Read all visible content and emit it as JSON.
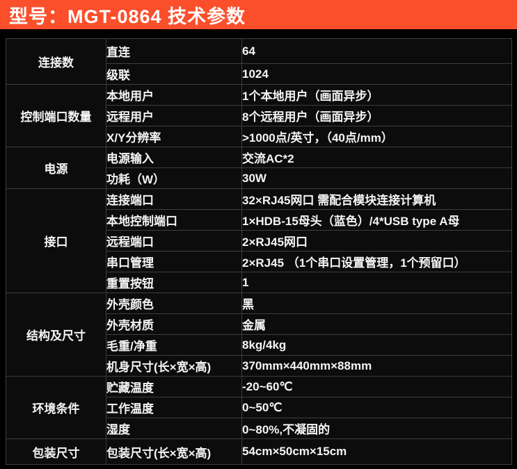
{
  "header": {
    "title": "型号：MGT-0864  技术参数"
  },
  "colors": {
    "accent": "#fb4f2c",
    "background": "#000000",
    "cell_background": "#0c0c0c",
    "border": "#3e3e3e",
    "text": "#f5f5f5"
  },
  "table": {
    "groups": [
      {
        "category": "连接数",
        "rows": [
          {
            "param": "直连",
            "value": "64"
          },
          {
            "param": "级联",
            "value": "1024"
          }
        ]
      },
      {
        "category": "控制端口数量",
        "rows": [
          {
            "param": "本地用户",
            "value": "1个本地用户（画面异步）"
          },
          {
            "param": "远程用户",
            "value": "8个远程用户（画面异步）"
          },
          {
            "param": "X/Y分辨率",
            "value": ">1000点/英寸，（40点/mm）"
          }
        ]
      },
      {
        "category": "电源",
        "rows": [
          {
            "param": "电源输入",
            "value": "交流AC*2"
          },
          {
            "param": "功耗（W）",
            "value": "30W"
          }
        ]
      },
      {
        "category": "接口",
        "rows": [
          {
            "param": "连接端口",
            "value": "32×RJ45网口 需配合模块连接计算机"
          },
          {
            "param": "本地控制端口",
            "value": "1×HDB-15母头（蓝色）/4*USB type A母"
          },
          {
            "param": "远程端口",
            "value": "2×RJ45网口"
          },
          {
            "param": "串口管理",
            "value": "2×RJ45 （1个串口设置管理，1个预留口）"
          },
          {
            "param": "重置按钮",
            "value": "1"
          }
        ]
      },
      {
        "category": "结构及尺寸",
        "rows": [
          {
            "param": "外壳颜色",
            "value": "黑"
          },
          {
            "param": "外壳材质",
            "value": "金属"
          },
          {
            "param": "毛重/净重",
            "value": "8kg/4kg"
          },
          {
            "param": "机身尺寸(长×宽×高)",
            "value": "370mm×440mm×88mm"
          }
        ]
      },
      {
        "category": "环境条件",
        "rows": [
          {
            "param": "贮藏温度",
            "value": "-20~60℃"
          },
          {
            "param": "工作温度",
            "value": "0~50℃"
          },
          {
            "param": "湿度",
            "value": "0~80%,不凝固的"
          }
        ]
      },
      {
        "category": "包装尺寸",
        "rows": [
          {
            "param": "包装尺寸(长×宽×高)",
            "value": "54cm×50cm×15cm"
          }
        ]
      }
    ]
  }
}
